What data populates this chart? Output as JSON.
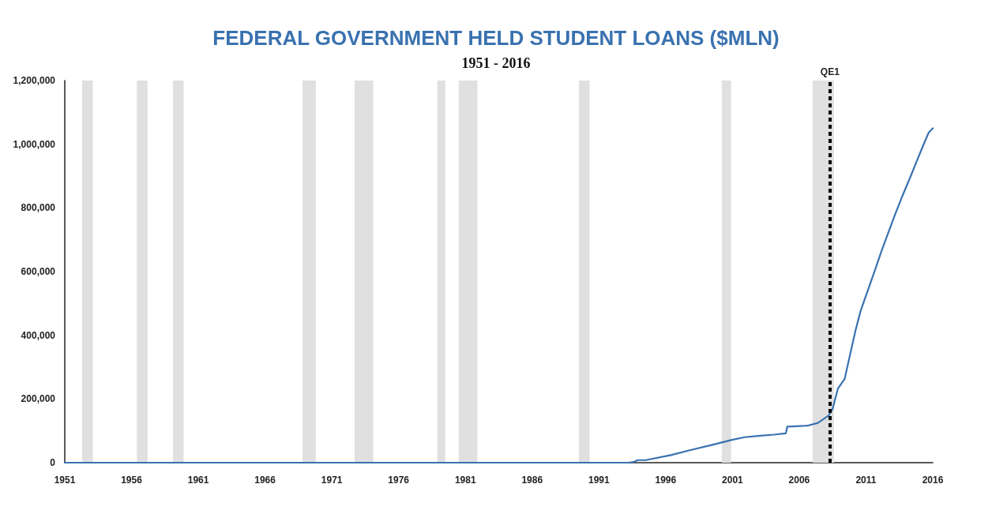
{
  "chart_data": {
    "type": "line",
    "title": "FEDERAL GOVERNMENT HELD STUDENT LOANS ($MLN)",
    "subtitle": "1951 - 2016",
    "x": [
      1951,
      1993.2,
      1993.6,
      1993.9,
      1994.5,
      1996.4,
      1997.8,
      1999.5,
      2000.9,
      2001.9,
      2002.9,
      2004.1,
      2005.0,
      2005.1,
      2006.6,
      2007.4,
      2008.2,
      2008.5,
      2008.9,
      2009.4,
      2010.2,
      2010.6,
      2011.6,
      2012.2,
      2013.1,
      2013.7,
      2014.3,
      2014.8,
      2015.3,
      2015.7,
      2016.0
    ],
    "series": [
      {
        "color": "#3a72b0",
        "values": [
          0,
          0,
          2000,
          8000,
          8000,
          24000,
          39000,
          56000,
          71000,
          80000,
          84000,
          88000,
          92000,
          113000,
          116000,
          125000,
          148000,
          169000,
          233000,
          263000,
          413000,
          477000,
          596000,
          669000,
          771000,
          835000,
          895000,
          947000,
          998000,
          1037000,
          1050000
        ]
      }
    ],
    "xlim": [
      1951,
      2016
    ],
    "xticks": [
      1951,
      1956,
      1961,
      1966,
      1971,
      1976,
      1981,
      1986,
      1991,
      1996,
      2001,
      2006,
      2011,
      2016
    ],
    "ylim": [
      0,
      1200000
    ],
    "yticks": [
      {
        "value": 0,
        "label": "0"
      },
      {
        "value": 200000,
        "label": "200,000"
      },
      {
        "value": 400000,
        "label": "400,000"
      },
      {
        "value": 600000,
        "label": "600,000"
      },
      {
        "value": 800000,
        "label": "800,000"
      },
      {
        "value": 1000000,
        "label": "1,000,000"
      },
      {
        "value": 1200000,
        "label": "1,200,000"
      }
    ],
    "grid": false,
    "marker": "none",
    "line_style": "solid",
    "ref_lines": [
      {
        "axis": "x",
        "value": 2008.3,
        "label": "QE1",
        "color": "#000000",
        "line_style": "dashed"
      }
    ],
    "bands": [
      {
        "axis": "x",
        "from": 1952.3,
        "to": 1953.1,
        "color": "#e0e0e0"
      },
      {
        "axis": "x",
        "from": 1956.4,
        "to": 1957.2,
        "color": "#e0e0e0"
      },
      {
        "axis": "x",
        "from": 1959.1,
        "to": 1959.9,
        "color": "#e0e0e0"
      },
      {
        "axis": "x",
        "from": 1968.8,
        "to": 1969.8,
        "color": "#e0e0e0"
      },
      {
        "axis": "x",
        "from": 1972.7,
        "to": 1974.1,
        "color": "#e0e0e0"
      },
      {
        "axis": "x",
        "from": 1978.9,
        "to": 1979.5,
        "color": "#e0e0e0"
      },
      {
        "axis": "x",
        "from": 1980.5,
        "to": 1981.9,
        "color": "#e0e0e0"
      },
      {
        "axis": "x",
        "from": 1989.5,
        "to": 1990.3,
        "color": "#e0e0e0"
      },
      {
        "axis": "x",
        "from": 2000.2,
        "to": 2000.9,
        "color": "#e0e0e0"
      },
      {
        "axis": "x",
        "from": 2007.0,
        "to": 2008.6,
        "color": "#e0e0e0"
      }
    ]
  }
}
